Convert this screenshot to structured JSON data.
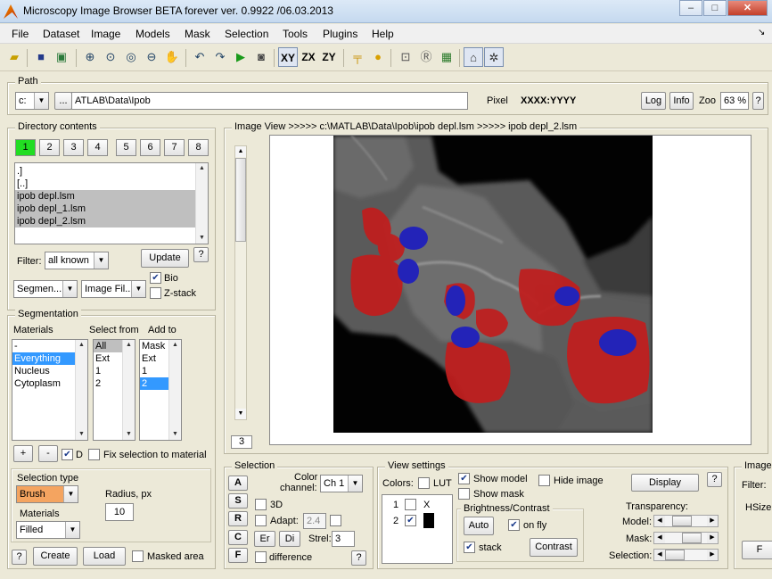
{
  "window": {
    "title": "Microscopy Image Browser BETA forever ver. 0.9922 /06.03.2013",
    "minimize": "–",
    "maximize": "□",
    "close": "✕"
  },
  "menu": [
    "File",
    "Dataset",
    "Image",
    "Models",
    "Mask",
    "Selection",
    "Tools",
    "Plugins",
    "Help"
  ],
  "menu_corner": "↘",
  "toolbar": {
    "icons": [
      "open-folder-icon",
      "save-icon",
      "save-as-icon",
      "zoom-in-icon",
      "zoom-fit-icon",
      "zoom-100-icon",
      "zoom-out-icon",
      "pan-hand-icon",
      "undo-icon",
      "redo-icon",
      "play-icon",
      "snapshot-icon",
      "plane-xy-icon",
      "plane-zx-icon",
      "plane-zy-icon",
      "measure-icon",
      "color-wheel-icon",
      "crop-icon",
      "resample-icon",
      "grid-icon",
      "volume-icon",
      "fly-icon"
    ],
    "xy": "XY",
    "zx": "ZX",
    "zy": "ZY"
  },
  "path": {
    "label": "Path",
    "drive": "c:",
    "browse": "...",
    "value": "ATLAB\\Data\\Ipob",
    "pixel_label": "Pixel",
    "pixel_value": "XXXX:YYYY",
    "log": "Log",
    "info": "Info",
    "zoom_label": "Zoo",
    "zoom_value": "63 %",
    "help": "?"
  },
  "directory": {
    "label": "Directory contents",
    "tabs": [
      "1",
      "2",
      "3",
      "4",
      "5",
      "6",
      "7",
      "8"
    ],
    "files": [
      ".]",
      "[..]",
      "ipob depl.lsm",
      "ipob depl_1.lsm",
      "ipob depl_2.lsm"
    ],
    "filter_label": "Filter:",
    "filter_value": "all known",
    "update": "Update",
    "help": "?",
    "reader1": "Segmen...",
    "reader2": "Image Fil...",
    "bio": "Bio",
    "zstack": "Z-stack"
  },
  "segmentation": {
    "label": "Segmentation",
    "materials_label": "Materials",
    "select_from_label": "Select from",
    "add_to_label": "Add to",
    "materials": [
      "-",
      "Everything",
      "Nucleus",
      "Cytoplasm"
    ],
    "select_from": [
      "All",
      "Ext",
      "1",
      "2"
    ],
    "add_to": [
      "Mask",
      "Ext",
      "1",
      "2"
    ],
    "plus": "+",
    "minus": "-",
    "d_label": "D",
    "fix_label": "Fix selection to material",
    "seltype_label": "Selection type",
    "tool": "Brush",
    "radius_label": "Radius, px",
    "radius_value": "10",
    "materials_mode_label": "Materials",
    "materials_mode": "Filled",
    "help": "?",
    "create": "Create",
    "load": "Load",
    "masked_area": "Masked area"
  },
  "imageview": {
    "label": "Image View   >>>>>   c:\\MATLAB\\Data\\Ipob\\ipob depl.lsm   >>>>>   ipob depl_2.lsm",
    "slice": "3"
  },
  "selection_panel": {
    "label": "Selection",
    "buttons": [
      "A",
      "S",
      "R",
      "C",
      "F"
    ],
    "color_channel_label1": "Color",
    "color_channel_label2": "channel:",
    "color_channel": "Ch 1",
    "three_d": "3D",
    "adapt": "Adapt:",
    "adapt_value": "2.4",
    "er": "Er",
    "di": "Di",
    "strel_label": "Strel:",
    "strel_value": "3",
    "difference": "difference",
    "help": "?"
  },
  "view_settings": {
    "label": "View settings",
    "colors_label": "Colors:",
    "lut": "LUT",
    "show_model": "Show model",
    "hide_image": "Hide image",
    "show_mask": "Show mask",
    "display": "Display",
    "help": "?",
    "channels": [
      {
        "n": "1",
        "mark": "X"
      },
      {
        "n": "2",
        "mark": ""
      }
    ],
    "bc_label": "Brightness/Contrast",
    "auto": "Auto",
    "on_fly": "on fly",
    "stack": "stack",
    "contrast": "Contrast",
    "transparency_label": "Transparency:",
    "model_label": "Model:",
    "mask_label": "Mask:",
    "selection_label": "Selection:",
    "model_level": 0.3,
    "mask_level": 0.75,
    "selection_level": 0.0
  },
  "image_panel": {
    "label": "Image",
    "filter": "Filter:",
    "hsize": "HSize",
    "f": "F"
  }
}
